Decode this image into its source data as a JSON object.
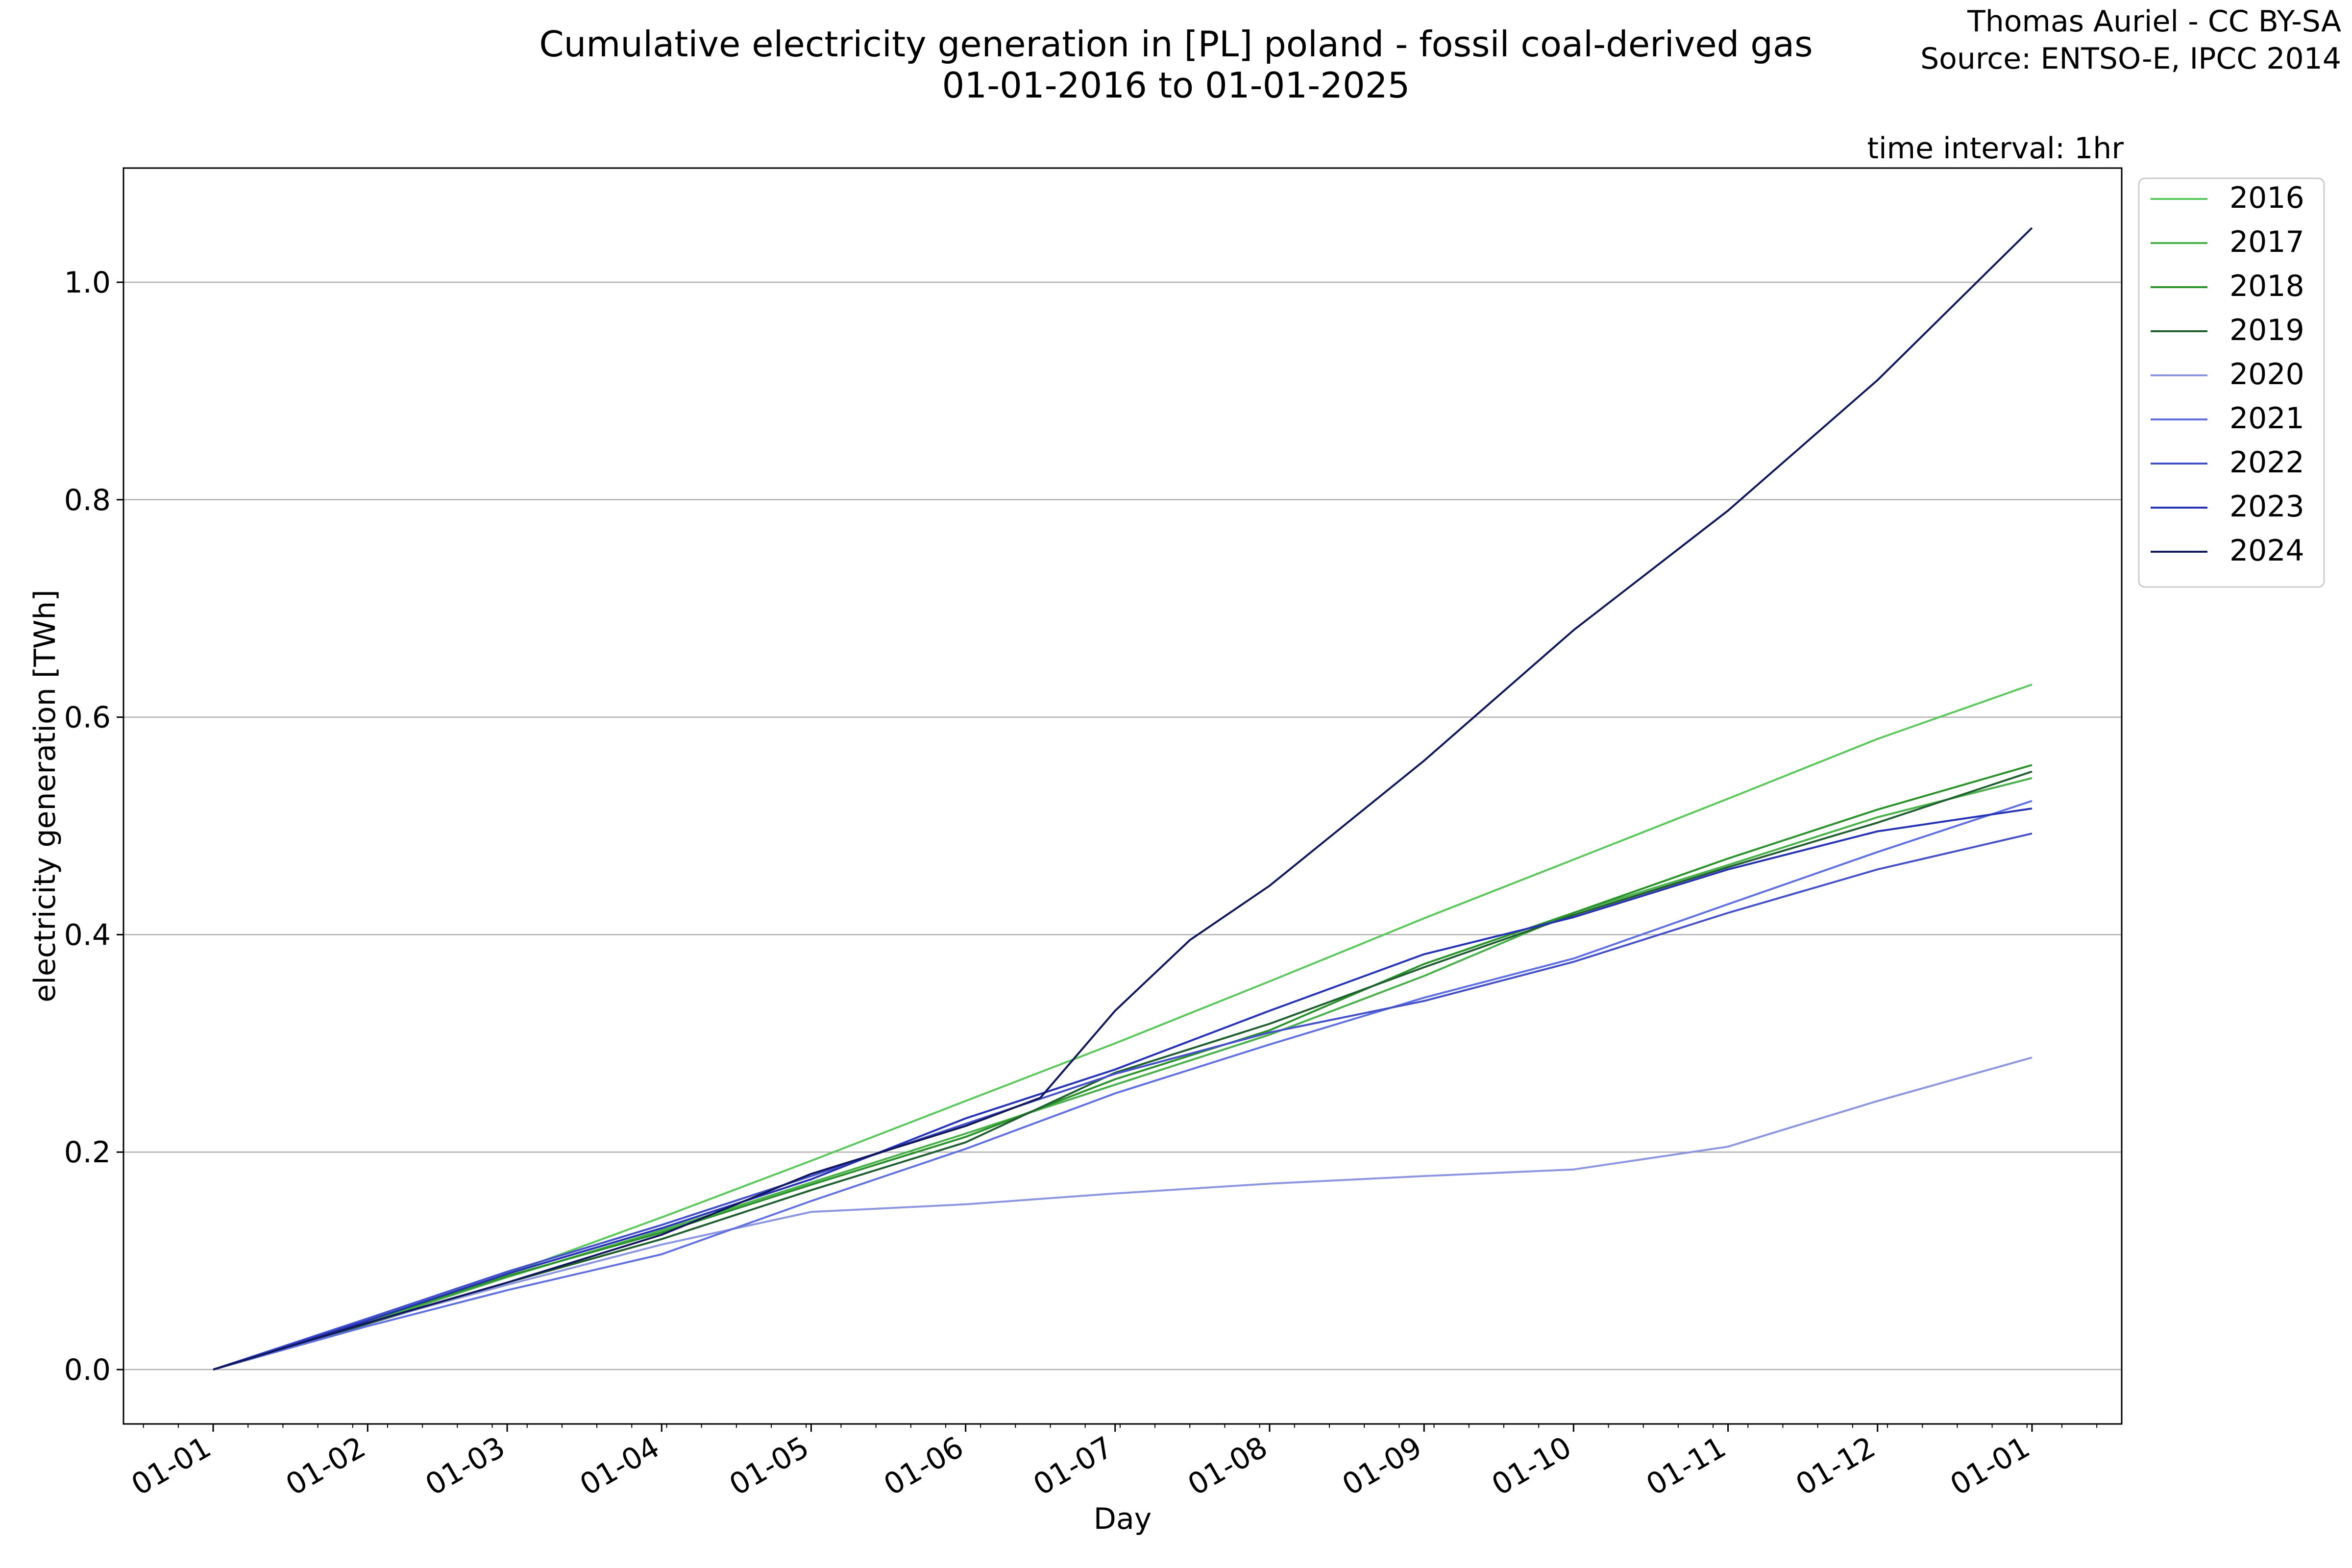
{
  "header": {
    "title_line1": "Cumulative electricity generation in [PL] poland - fossil coal-derived gas",
    "title_line2": "01-01-2016 to 01-01-2025",
    "credit_line1": "Thomas Auriel - CC BY-SA",
    "credit_line2": "Source: ENTSO-E, IPCC 2014",
    "interval": "time interval: 1hr"
  },
  "chart_data": {
    "type": "line",
    "xlabel": "Day",
    "ylabel": "electricity generation [TWh]",
    "x_ticks": [
      "01-01",
      "01-02",
      "01-03",
      "01-04",
      "01-05",
      "01-06",
      "01-07",
      "01-08",
      "01-09",
      "01-10",
      "01-11",
      "01-12",
      "01-01"
    ],
    "x_tick_days": [
      0,
      31,
      59,
      90,
      120,
      151,
      181,
      212,
      243,
      273,
      304,
      334,
      365
    ],
    "xlim": [
      -18,
      383
    ],
    "ylim": [
      -0.05,
      1.105
    ],
    "y_ticks": [
      0.0,
      0.2,
      0.4,
      0.6,
      0.8,
      1.0
    ],
    "y_tick_labels": [
      "0.0",
      "0.2",
      "0.4",
      "0.6",
      "0.8",
      "1.0"
    ],
    "grid": "horizontal",
    "legend_position": "outside-top-right",
    "series": [
      {
        "name": "2016",
        "color": "#5bc85b",
        "x": [
          0,
          31,
          59,
          90,
          120,
          151,
          181,
          212,
          243,
          273,
          304,
          334,
          365
        ],
        "y": [
          0,
          0.045,
          0.088,
          0.14,
          0.192,
          0.247,
          0.3,
          0.357,
          0.415,
          0.469,
          0.525,
          0.58,
          0.63
        ]
      },
      {
        "name": "2017",
        "color": "#48b048",
        "x": [
          0,
          31,
          59,
          90,
          120,
          151,
          181,
          212,
          243,
          273,
          304,
          334,
          365
        ],
        "y": [
          0,
          0.043,
          0.085,
          0.128,
          0.172,
          0.217,
          0.262,
          0.308,
          0.362,
          0.42,
          0.464,
          0.508,
          0.544
        ]
      },
      {
        "name": "2018",
        "color": "#2a922a",
        "x": [
          0,
          31,
          59,
          90,
          120,
          151,
          181,
          212,
          243,
          273,
          304,
          334,
          365
        ],
        "y": [
          0,
          0.045,
          0.086,
          0.126,
          0.17,
          0.214,
          0.267,
          0.312,
          0.373,
          0.42,
          0.47,
          0.515,
          0.556
        ]
      },
      {
        "name": "2019",
        "color": "#1f5e2e",
        "x": [
          0,
          31,
          59,
          90,
          120,
          151,
          181,
          212,
          243,
          273,
          304,
          334,
          365
        ],
        "y": [
          0,
          0.042,
          0.08,
          0.12,
          0.165,
          0.209,
          0.273,
          0.318,
          0.37,
          0.418,
          0.462,
          0.503,
          0.55
        ]
      },
      {
        "name": "2020",
        "color": "#8c96e0",
        "x": [
          0,
          31,
          59,
          90,
          120,
          151,
          181,
          212,
          243,
          273,
          304,
          334,
          365
        ],
        "y": [
          0,
          0.043,
          0.078,
          0.115,
          0.145,
          0.152,
          0.162,
          0.171,
          0.178,
          0.184,
          0.205,
          0.247,
          0.287
        ]
      },
      {
        "name": "2021",
        "color": "#6070e0",
        "x": [
          0,
          31,
          59,
          90,
          120,
          151,
          181,
          212,
          243,
          273,
          304,
          334,
          365
        ],
        "y": [
          0,
          0.04,
          0.073,
          0.106,
          0.155,
          0.203,
          0.254,
          0.299,
          0.342,
          0.378,
          0.428,
          0.476,
          0.523
        ]
      },
      {
        "name": "2022",
        "color": "#4450c8",
        "x": [
          0,
          31,
          59,
          90,
          120,
          151,
          181,
          212,
          243,
          273,
          304,
          334,
          365
        ],
        "y": [
          0,
          0.047,
          0.09,
          0.133,
          0.178,
          0.226,
          0.272,
          0.31,
          0.339,
          0.375,
          0.42,
          0.46,
          0.493
        ]
      },
      {
        "name": "2023",
        "color": "#2632b4",
        "x": [
          0,
          31,
          59,
          90,
          120,
          151,
          181,
          212,
          243,
          273,
          304,
          334,
          365
        ],
        "y": [
          0,
          0.045,
          0.088,
          0.13,
          0.175,
          0.231,
          0.276,
          0.33,
          0.382,
          0.416,
          0.46,
          0.495,
          0.516
        ]
      },
      {
        "name": "2024",
        "color": "#10165a",
        "x": [
          0,
          31,
          59,
          90,
          120,
          151,
          166,
          181,
          196,
          212,
          243,
          273,
          304,
          334,
          365
        ],
        "y": [
          0,
          0.043,
          0.08,
          0.124,
          0.18,
          0.224,
          0.25,
          0.33,
          0.395,
          0.445,
          0.56,
          0.68,
          0.79,
          0.91,
          1.05
        ]
      }
    ]
  }
}
